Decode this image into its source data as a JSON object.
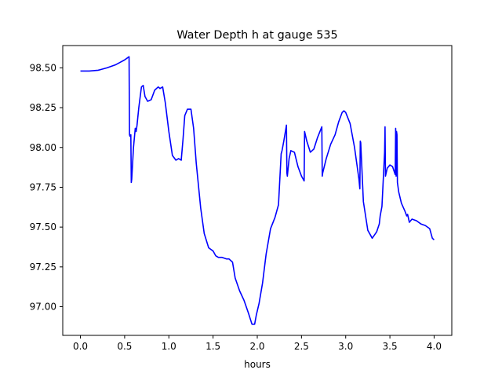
{
  "chart_data": {
    "type": "line",
    "title": "Water Depth h at gauge 535",
    "xlabel": "hours",
    "ylabel": "",
    "xlim": [
      -0.2,
      4.2
    ],
    "ylim": [
      96.82,
      98.64
    ],
    "xticks": [
      0.0,
      0.5,
      1.0,
      1.5,
      2.0,
      2.5,
      3.0,
      3.5,
      4.0
    ],
    "xtick_labels": [
      "0.0",
      "0.5",
      "1.0",
      "1.5",
      "2.0",
      "2.5",
      "3.0",
      "3.5",
      "4.0"
    ],
    "yticks": [
      97.0,
      97.25,
      97.5,
      97.75,
      98.0,
      98.25,
      98.5
    ],
    "ytick_labels": [
      "97.00",
      "97.25",
      "97.50",
      "97.75",
      "98.00",
      "98.25",
      "98.50"
    ],
    "grid": false,
    "series": [
      {
        "color": "#0000ff",
        "x": [
          0.0,
          0.1,
          0.2,
          0.3,
          0.4,
          0.45,
          0.5,
          0.55,
          0.555,
          0.56,
          0.57,
          0.575,
          0.58,
          0.6,
          0.62,
          0.63,
          0.64,
          0.66,
          0.69,
          0.71,
          0.73,
          0.76,
          0.8,
          0.84,
          0.88,
          0.9,
          0.93,
          0.96,
          1.0,
          1.04,
          1.08,
          1.11,
          1.14,
          1.16,
          1.18,
          1.21,
          1.25,
          1.28,
          1.31,
          1.36,
          1.4,
          1.45,
          1.5,
          1.53,
          1.56,
          1.6,
          1.65,
          1.68,
          1.72,
          1.75,
          1.8,
          1.85,
          1.9,
          1.94,
          1.97,
          1.99,
          2.02,
          2.06,
          2.1,
          2.15,
          2.2,
          2.24,
          2.27,
          2.28,
          2.3,
          2.33,
          2.335,
          2.34,
          2.36,
          2.38,
          2.42,
          2.46,
          2.5,
          2.53,
          2.535,
          2.56,
          2.6,
          2.64,
          2.68,
          2.73,
          2.735,
          2.74,
          2.78,
          2.83,
          2.88,
          2.92,
          2.96,
          2.98,
          3.0,
          3.05,
          3.1,
          3.15,
          3.16,
          3.165,
          3.17,
          3.2,
          3.25,
          3.3,
          3.35,
          3.38,
          3.39,
          3.41,
          3.44,
          3.445,
          3.45,
          3.47,
          3.5,
          3.53,
          3.56,
          3.565,
          3.57,
          3.575,
          3.58,
          3.585,
          3.6,
          3.63,
          3.67,
          3.69,
          3.7,
          3.72,
          3.75,
          3.8,
          3.85,
          3.9,
          3.95,
          3.98,
          4.0
        ],
        "y": [
          98.48,
          98.48,
          98.485,
          98.5,
          98.52,
          98.535,
          98.55,
          98.57,
          98.08,
          98.07,
          98.08,
          97.78,
          97.8,
          98.0,
          98.12,
          98.1,
          98.14,
          98.25,
          98.38,
          98.39,
          98.32,
          98.29,
          98.3,
          98.36,
          98.38,
          98.37,
          98.38,
          98.28,
          98.1,
          97.95,
          97.92,
          97.93,
          97.92,
          98.05,
          98.2,
          98.24,
          98.24,
          98.12,
          97.9,
          97.62,
          97.46,
          97.37,
          97.35,
          97.32,
          97.31,
          97.31,
          97.3,
          97.3,
          97.28,
          97.18,
          97.1,
          97.04,
          96.96,
          96.89,
          96.89,
          96.95,
          97.02,
          97.15,
          97.33,
          97.49,
          97.56,
          97.64,
          97.96,
          97.98,
          98.04,
          98.14,
          97.84,
          97.82,
          97.93,
          97.98,
          97.97,
          97.88,
          97.82,
          97.79,
          98.1,
          98.04,
          97.97,
          97.99,
          98.06,
          98.13,
          97.82,
          97.84,
          97.93,
          98.02,
          98.08,
          98.16,
          98.22,
          98.23,
          98.22,
          98.15,
          98.0,
          97.8,
          97.74,
          98.04,
          98.03,
          97.66,
          97.48,
          97.43,
          97.47,
          97.52,
          97.57,
          97.63,
          97.97,
          98.13,
          97.82,
          97.87,
          97.89,
          97.88,
          97.83,
          98.12,
          97.82,
          98.1,
          98.08,
          97.78,
          97.72,
          97.65,
          97.6,
          97.57,
          97.58,
          97.53,
          97.55,
          97.54,
          97.52,
          97.51,
          97.49,
          97.43,
          97.42
        ]
      }
    ]
  }
}
